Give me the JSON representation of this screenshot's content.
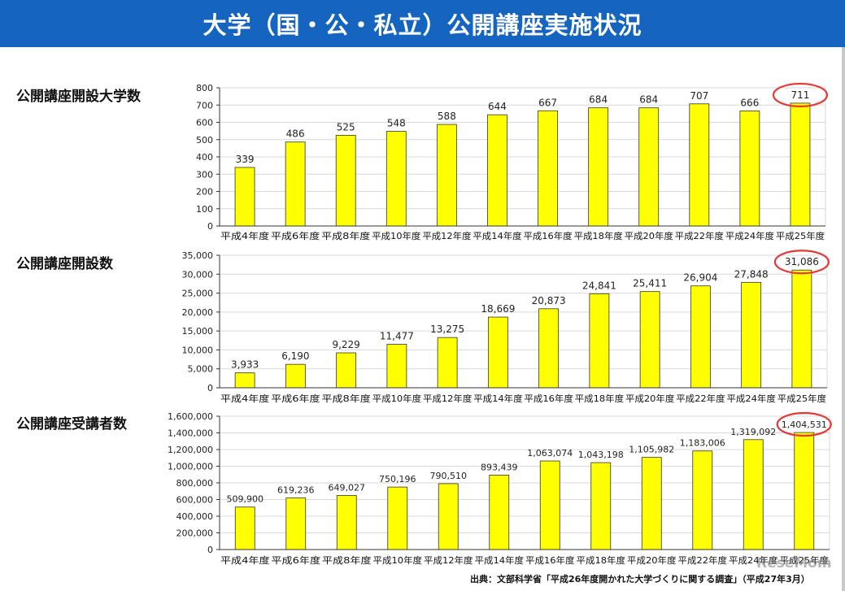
{
  "header": {
    "title": "大学（国・公・私立）公開講座実施状況"
  },
  "colors": {
    "banner": "#1565c0",
    "bar": "#ffff00",
    "bar_stroke": "#333333",
    "highlight": "#e53935",
    "grid": "#d9d9d9"
  },
  "chart_data": [
    {
      "type": "bar",
      "title": "公開講座開設大学数",
      "categories": [
        "平成4年度",
        "平成6年度",
        "平成8年度",
        "平成10年度",
        "平成12年度",
        "平成14年度",
        "平成16年度",
        "平成18年度",
        "平成20年度",
        "平成22年度",
        "平成24年度",
        "平成25年度"
      ],
      "values": [
        339,
        486,
        525,
        548,
        588,
        644,
        667,
        684,
        684,
        707,
        666,
        711
      ],
      "value_labels": [
        "339",
        "486",
        "525",
        "548",
        "588",
        "644",
        "667",
        "684",
        "684",
        "707",
        "666",
        "711"
      ],
      "ylim": [
        0,
        800
      ],
      "yticks": [
        "0",
        "100",
        "200",
        "300",
        "400",
        "500",
        "600",
        "700",
        "800"
      ],
      "highlight": "last",
      "xlabel": "",
      "ylabel": ""
    },
    {
      "type": "bar",
      "title": "公開講座開設数",
      "categories": [
        "平成4年度",
        "平成6年度",
        "平成8年度",
        "平成10年度",
        "平成12年度",
        "平成14年度",
        "平成16年度",
        "平成18年度",
        "平成20年度",
        "平成22年度",
        "平成24年度",
        "平成25年度"
      ],
      "values": [
        3933,
        6190,
        9229,
        11477,
        13275,
        18669,
        20873,
        24841,
        25411,
        26904,
        27848,
        31086
      ],
      "value_labels": [
        "3,933",
        "6,190",
        "9,229",
        "11,477",
        "13,275",
        "18,669",
        "20,873",
        "24,841",
        "25,411",
        "26,904",
        "27,848",
        "31,086"
      ],
      "ylim": [
        0,
        35000
      ],
      "yticks": [
        "0",
        "5,000",
        "10,000",
        "15,000",
        "20,000",
        "25,000",
        "30,000",
        "35,000"
      ],
      "highlight": "last",
      "xlabel": "",
      "ylabel": ""
    },
    {
      "type": "bar",
      "title": "公開講座受講者数",
      "categories": [
        "平成4年度",
        "平成6年度",
        "平成8年度",
        "平成10年度",
        "平成12年度",
        "平成14年度",
        "平成16年度",
        "平成18年度",
        "平成20年度",
        "平成22年度",
        "平成24年度",
        "平成25年度"
      ],
      "values": [
        509900,
        619236,
        649027,
        750196,
        790510,
        893439,
        1063074,
        1043198,
        1105982,
        1183006,
        1319092,
        1404531
      ],
      "value_labels": [
        "509,900",
        "619,236",
        "649,027",
        "750,196",
        "790,510",
        "893,439",
        "1,063,074",
        "1,043,198",
        "1,105,982",
        "1,183,006",
        "1,319,092",
        "1,404,531"
      ],
      "ylim": [
        0,
        1600000
      ],
      "yticks": [
        "0",
        "200,000",
        "400,000",
        "600,000",
        "800,000",
        "1,000,000",
        "1,200,000",
        "1,400,000",
        "1,600,000"
      ],
      "highlight": "last",
      "xlabel": "",
      "ylabel": ""
    }
  ],
  "footer": {
    "source": "出典：文部科学省「平成26年度開かれた大学づくりに関する調査」（平成27年3月）",
    "watermark": "ReseMom"
  }
}
